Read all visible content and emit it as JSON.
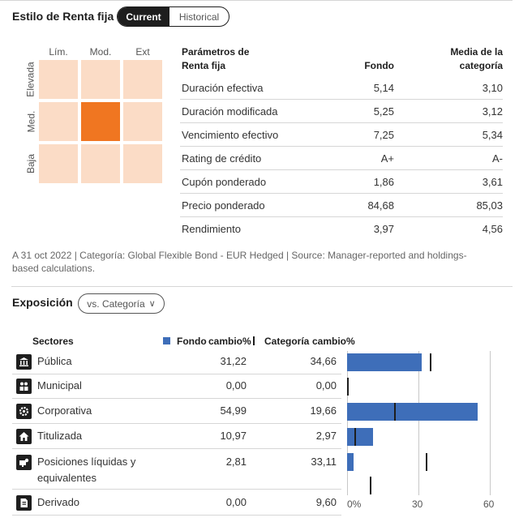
{
  "header": {
    "title": "Estilo de Renta fija",
    "toggle": {
      "current": "Current",
      "historical": "Historical"
    }
  },
  "style_box": {
    "columns": [
      "Lím.",
      "Mod.",
      "Ext"
    ],
    "rows": [
      "Elevada",
      "Med.",
      "Baja"
    ],
    "selected": {
      "row": "Med.",
      "column": "Mod."
    }
  },
  "params": {
    "col_param": "Parámetros de\nRenta fija",
    "col_fund": "Fondo",
    "col_cat": "Media de la\ncategoría",
    "rows": [
      {
        "label": "Duración efectiva",
        "fund": "5,14",
        "cat": "3,10"
      },
      {
        "label": "Duración modificada",
        "fund": "5,25",
        "cat": "3,12"
      },
      {
        "label": "Vencimiento efectivo",
        "fund": "7,25",
        "cat": "5,34"
      },
      {
        "label": "Rating de crédito",
        "fund": "A+",
        "cat": "A-"
      },
      {
        "label": "Cupón ponderado",
        "fund": "1,86",
        "cat": "3,61"
      },
      {
        "label": "Precio ponderado",
        "fund": "84,68",
        "cat": "85,03"
      },
      {
        "label": "Rendimiento",
        "fund": "3,97",
        "cat": "4,56"
      }
    ]
  },
  "note": "A 31 oct 2022 | Categoría: Global Flexible Bond - EUR Hedged | Source: Manager-reported and holdings-based calculations.",
  "exposure": {
    "title": "Exposición",
    "selector": "vs. Categoría",
    "col_sectors": "Sectores",
    "col_fund": "Fondo",
    "col_fund_change": "cambio%",
    "col_cat": "Categoría",
    "col_cat_change": "cambio%",
    "colors": {
      "fund": "#3e6eb9",
      "category": "#1e1e1e"
    },
    "rows": [
      {
        "icon": "public-building-icon",
        "name": "Pública",
        "fund": "31,22",
        "cat": "34,66"
      },
      {
        "icon": "municipal-icon",
        "name": "Municipal",
        "fund": "0,00",
        "cat": "0,00"
      },
      {
        "icon": "corporate-gear-icon",
        "name": "Corporativa",
        "fund": "54,99",
        "cat": "19,66"
      },
      {
        "icon": "house-icon",
        "name": "Titulizada",
        "fund": "10,97",
        "cat": "2,97"
      },
      {
        "icon": "cash-icon",
        "name": "Posiciones líquidas y equivalentes",
        "fund": "2,81",
        "cat": "33,11"
      },
      {
        "icon": "document-icon",
        "name": "Derivado",
        "fund": "0,00",
        "cat": "9,60"
      }
    ]
  },
  "chart_data": {
    "type": "bar",
    "categories": [
      "Pública",
      "Municipal",
      "Corporativa",
      "Titulizada",
      "Posiciones líquidas y equivalentes",
      "Derivado"
    ],
    "series": [
      {
        "name": "Fondo",
        "values": [
          31.22,
          0.0,
          54.99,
          10.97,
          2.81,
          0.0
        ]
      },
      {
        "name": "Categoría",
        "values": [
          34.66,
          0.0,
          19.66,
          2.97,
          33.11,
          9.6
        ]
      }
    ],
    "xlim": [
      0,
      60
    ],
    "ticks": [
      "0%",
      "30",
      "60"
    ],
    "orientation": "horizontal"
  }
}
